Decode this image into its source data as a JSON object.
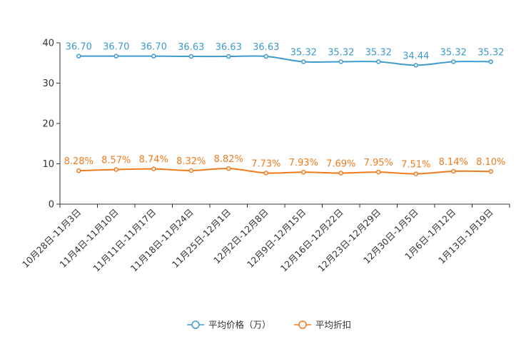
{
  "chart_data": {
    "type": "line",
    "title": "",
    "xlabel": "",
    "ylabel": "",
    "ylim": [
      0,
      40
    ],
    "yticks": [
      0,
      10,
      20,
      30,
      40
    ],
    "grid": false,
    "legend_position": "bottom-center",
    "categories": [
      "10月28日-11月3日",
      "11月4日-11月10日",
      "11月11日-11月17日",
      "11月18日-11月24日",
      "11月25日-12月1日",
      "12月2日-12月8日",
      "12月9日-12月15日",
      "12月16日-12月22日",
      "12月23日-12月29日",
      "12月30日-1月5日",
      "1月6日-1月12日",
      "1月13日-1月19日"
    ],
    "series": [
      {
        "name": "平均价格（万）",
        "color": "#3d9bcc",
        "values": [
          36.7,
          36.7,
          36.7,
          36.63,
          36.63,
          36.63,
          35.32,
          35.32,
          35.32,
          34.44,
          35.32,
          35.32
        ],
        "labels": [
          "36.70",
          "36.70",
          "36.70",
          "36.63",
          "36.63",
          "36.63",
          "35.32",
          "35.32",
          "35.32",
          "34.44",
          "35.32",
          "35.32"
        ]
      },
      {
        "name": "平均折扣",
        "color": "#f07b1d",
        "values": [
          8.28,
          8.57,
          8.74,
          8.32,
          8.82,
          7.73,
          7.93,
          7.69,
          7.95,
          7.51,
          8.14,
          8.1
        ],
        "labels": [
          "8.28%",
          "8.57%",
          "8.74%",
          "8.32%",
          "8.82%",
          "7.73%",
          "7.93%",
          "7.69%",
          "7.95%",
          "7.51%",
          "8.14%",
          "8.10%"
        ]
      }
    ]
  }
}
